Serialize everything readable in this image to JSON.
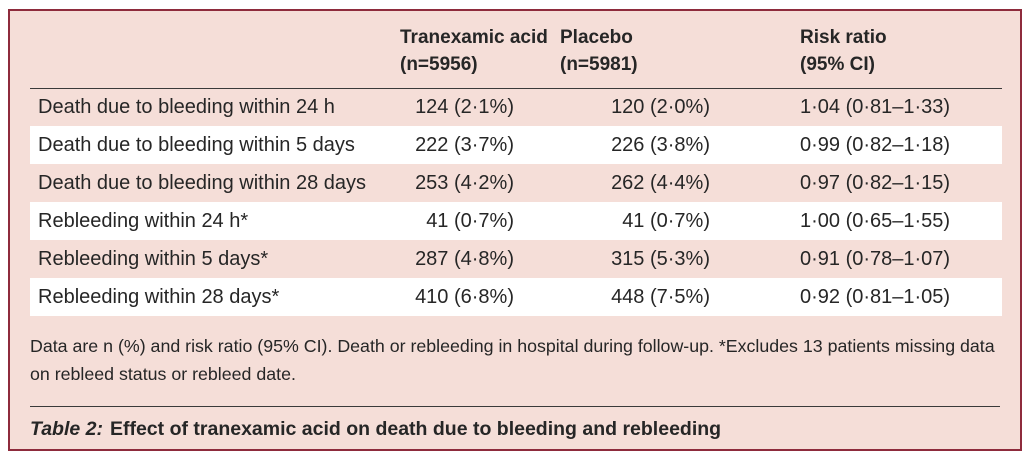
{
  "colors": {
    "card_background": "#f5ded8",
    "card_border": "#8e2b3c",
    "row_stripe": "#ffffff",
    "rule": "#3a3a3a",
    "text": "#262626"
  },
  "header": {
    "tranexamic": {
      "line1": "Tranexamic acid",
      "line2": "(n=5956)"
    },
    "placebo": {
      "line1": "Placebo",
      "line2": "(n=5981)"
    },
    "risk_ratio": {
      "line1": "Risk ratio",
      "line2": "(95% CI)"
    }
  },
  "rows": [
    {
      "label": "Death due to bleeding within 24 h",
      "tranexamic": "124 (2·1%)",
      "placebo": "120 (2·0%)",
      "risk_ratio": "1·04 (0·81–1·33)"
    },
    {
      "label": "Death due to bleeding within 5 days",
      "tranexamic": "222 (3·7%)",
      "placebo": "226 (3·8%)",
      "risk_ratio": "0·99 (0·82–1·18)"
    },
    {
      "label": "Death due to bleeding within 28 days",
      "tranexamic": "253 (4·2%)",
      "placebo": "262 (4·4%)",
      "risk_ratio": "0·97 (0·82–1·15)"
    },
    {
      "label": "Rebleeding within 24 h*",
      "tranexamic": "41 (0·7%)",
      "placebo": "41 (0·7%)",
      "risk_ratio": "1·00 (0·65–1·55)"
    },
    {
      "label": "Rebleeding within 5 days*",
      "tranexamic": "287 (4·8%)",
      "placebo": "315 (5·3%)",
      "risk_ratio": "0·91 (0·78–1·07)"
    },
    {
      "label": "Rebleeding within 28 days*",
      "tranexamic": "410 (6·8%)",
      "placebo": "448 (7·5%)",
      "risk_ratio": "0·92 (0·81–1·05)"
    }
  ],
  "footnote": "Data are n (%) and risk ratio (95% CI). Death or rebleeding in hospital during follow-up. *Excludes 13 patients missing data on rebleed status or rebleed date.",
  "caption": {
    "prefix": "Table 2:",
    "text": "Effect of tranexamic acid on death due to bleeding and rebleeding"
  },
  "chart_data": {
    "type": "table",
    "title": "Table 2: Effect of tranexamic acid on death due to bleeding and rebleeding",
    "columns": [
      "",
      "Tranexamic acid (n=5956)",
      "Placebo (n=5981)",
      "Risk ratio (95% CI)"
    ],
    "rows": [
      [
        "Death due to bleeding within 24 h",
        "124 (2·1%)",
        "120 (2·0%)",
        "1·04 (0·81–1·33)"
      ],
      [
        "Death due to bleeding within 5 days",
        "222 (3·7%)",
        "226 (3·8%)",
        "0·99 (0·82–1·18)"
      ],
      [
        "Death due to bleeding within 28 days",
        "253 (4·2%)",
        "262 (4·4%)",
        "0·97 (0·82–1·15)"
      ],
      [
        "Rebleeding within 24 h*",
        "41 (0·7%)",
        "41 (0·7%)",
        "1·00 (0·65–1·55)"
      ],
      [
        "Rebleeding within 5 days*",
        "287 (4·8%)",
        "315 (5·3%)",
        "0·91 (0·78–1·07)"
      ],
      [
        "Rebleeding within 28 days*",
        "410 (6·8%)",
        "448 (7·5%)",
        "0·92 (0·81–1·05)"
      ]
    ]
  }
}
